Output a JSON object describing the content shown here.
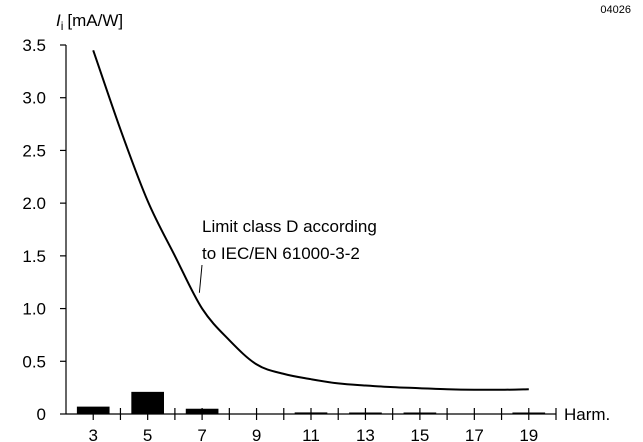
{
  "figure_id": "04026",
  "chart_data": {
    "type": "bar",
    "ylabel": {
      "symbol": "I",
      "subscript": "i",
      "unit": "[mA/W]"
    },
    "xlabel": "Harm.",
    "ylim": [
      0,
      3.5
    ],
    "xlim": [
      2,
      20
    ],
    "yticks": [
      0,
      0.5,
      1.0,
      1.5,
      2.0,
      2.5,
      3.0,
      3.5
    ],
    "ytick_labels": [
      "0",
      "0.5",
      "1.0",
      "1.5",
      "2.0",
      "2.5",
      "3.0",
      "3.5"
    ],
    "xticks": [
      3,
      5,
      7,
      9,
      11,
      13,
      15,
      17,
      19
    ],
    "xtick_labels": [
      "3",
      "5",
      "7",
      "9",
      "11",
      "13",
      "15",
      "17",
      "19"
    ],
    "grid": false,
    "bars": {
      "harmonics": [
        3,
        5,
        7,
        9,
        11,
        13,
        15,
        17,
        19
      ],
      "values": [
        0.07,
        0.21,
        0.05,
        0.0,
        0.015,
        0.01,
        0.01,
        0.0,
        0.01
      ]
    },
    "limit_curve": {
      "x": [
        3,
        4,
        5,
        6,
        7,
        8,
        9,
        10,
        11,
        12,
        13,
        14,
        15,
        16,
        17,
        18,
        19
      ],
      "y": [
        3.45,
        2.7,
        2.02,
        1.5,
        1.0,
        0.7,
        0.47,
        0.38,
        0.33,
        0.29,
        0.27,
        0.255,
        0.245,
        0.235,
        0.23,
        0.23,
        0.235
      ]
    },
    "annotation": {
      "lines": [
        "Limit class D according",
        "to IEC/EN 61000-3-2"
      ],
      "points_to": {
        "x": 6.9,
        "y": 1.15
      }
    }
  }
}
